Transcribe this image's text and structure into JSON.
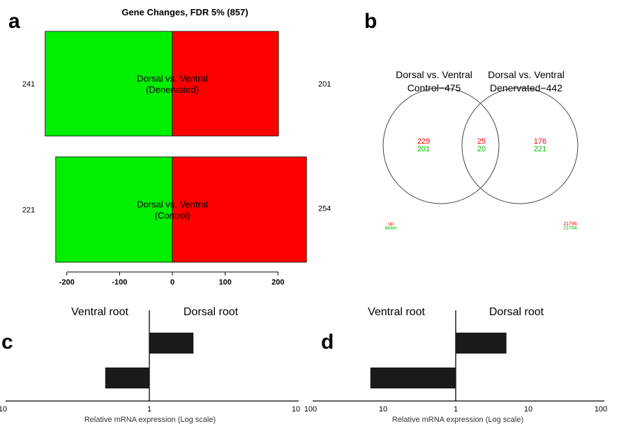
{
  "panels": {
    "a": "a",
    "b": "b",
    "c": "c",
    "d": "d"
  },
  "chart_data": [
    {
      "panel": "a",
      "type": "bar",
      "orientation": "horizontal",
      "title": "Gene Changes, FDR 5% (857)",
      "xlim": [
        -220,
        250
      ],
      "xticks": [
        "-200",
        "-100",
        "0",
        "100",
        "200"
      ],
      "xtick_values": [
        -200,
        -100,
        0,
        100,
        200
      ],
      "bars": [
        {
          "label_line1": "Dorsal vs. Ventral",
          "label_line2": "(Denervated)",
          "down": -241,
          "up": 201,
          "down_label": "241",
          "up_label": "201"
        },
        {
          "label_line1": "Dorsal vs. Ventral",
          "label_line2": "(Control)",
          "down": -221,
          "up": 254,
          "down_label": "221",
          "up_label": "254"
        }
      ],
      "colors": {
        "down": "#00ee00",
        "up": "#ff0000"
      }
    },
    {
      "panel": "b",
      "type": "venn",
      "sets": [
        {
          "name_line1": "Dorsal vs. Ventral",
          "name_line2": "Control−475",
          "up": "229",
          "down": "201"
        },
        {
          "name_line1": "Dorsal vs. Ventral",
          "name_line2": "Denervated−442",
          "up": "176",
          "down": "221"
        }
      ],
      "intersection": {
        "up": "25",
        "down": "20"
      },
      "legend": {
        "up": "up",
        "down": "down"
      },
      "outside": {
        "up": "21796",
        "down": "21764"
      },
      "colors": {
        "up": "#ff0000",
        "down": "#00bb00"
      }
    },
    {
      "panel": "c",
      "type": "bar",
      "orientation": "horizontal",
      "scale": "log",
      "left_label": "Ventral root",
      "right_label": "Dorsal root",
      "xlabel": "Relative mRNA expression (Log scale)",
      "xlim": [
        -10,
        10
      ],
      "xticks": [
        "10",
        "1",
        "10"
      ],
      "xtick_values": [
        -10,
        1,
        10
      ],
      "values": [
        2,
        -2
      ]
    },
    {
      "panel": "d",
      "type": "bar",
      "orientation": "horizontal",
      "scale": "log",
      "left_label": "Ventral root",
      "right_label": "Dorsal root",
      "xlabel": "Relative mRNA expression (Log scale)",
      "xlim": [
        -100,
        100
      ],
      "xticks": [
        "100",
        "10",
        "1",
        "10",
        "100"
      ],
      "xtick_values": [
        -100,
        -10,
        1,
        10,
        100
      ],
      "values": [
        5,
        -15
      ]
    }
  ]
}
